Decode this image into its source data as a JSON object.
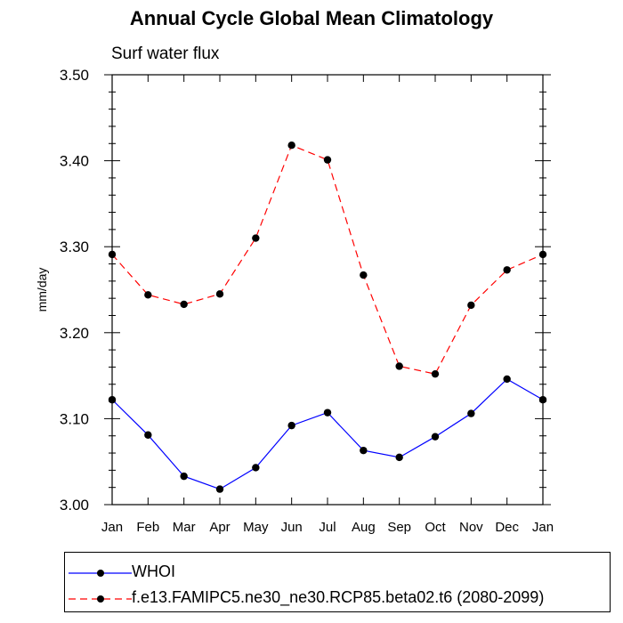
{
  "chart_data": {
    "type": "line",
    "title": "Annual Cycle Global Mean Climatology",
    "subtitle": "Surf water flux",
    "xlabel": "",
    "ylabel": "mm/day",
    "categories": [
      "Jan",
      "Feb",
      "Mar",
      "Apr",
      "May",
      "Jun",
      "Jul",
      "Aug",
      "Sep",
      "Oct",
      "Nov",
      "Dec",
      "Jan"
    ],
    "ylim": [
      3.0,
      3.5
    ],
    "yticks": [
      "3.00",
      "3.10",
      "3.20",
      "3.30",
      "3.40",
      "3.50"
    ],
    "series": [
      {
        "name": "WHOI",
        "color": "#0000ff",
        "dash": "solid",
        "values": [
          3.122,
          3.081,
          3.033,
          3.018,
          3.043,
          3.092,
          3.107,
          3.063,
          3.055,
          3.079,
          3.106,
          3.146,
          3.122
        ]
      },
      {
        "name": "f.e13.FAMIPC5.ne30_ne30.RCP85.beta02.t6 (2080-2099)",
        "color": "#ff0000",
        "dash": "dashed",
        "values": [
          3.291,
          3.244,
          3.233,
          3.245,
          3.31,
          3.418,
          3.401,
          3.267,
          3.161,
          3.152,
          3.232,
          3.273,
          3.291
        ]
      }
    ],
    "legend_position": "bottom"
  }
}
